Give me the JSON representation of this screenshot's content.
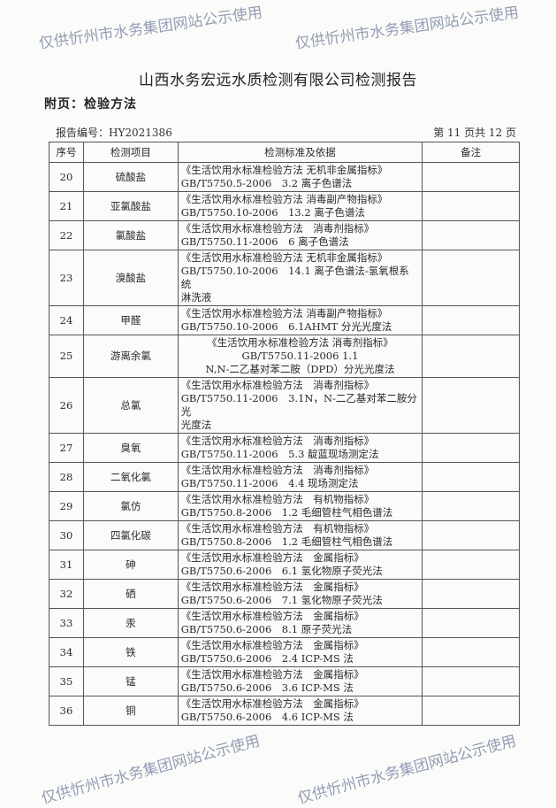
{
  "header": {
    "title": "山西水务宏远水质检测有限公司检测报告",
    "appendix": "附页：检验方法",
    "report_no": "报告编号：HY2021386",
    "page_no": "第 11 页共 12 页"
  },
  "table": {
    "columns": [
      "序号",
      "检测项目",
      "检测标准及依据",
      "备注"
    ],
    "rows": [
      {
        "no": "20",
        "item": "硫酸盐",
        "std": [
          "《生活饮用水标准检验方法 无机非金属指标》",
          "GB/T5750.5-2006　3.2 离子色谱法"
        ],
        "note": ""
      },
      {
        "no": "21",
        "item": "亚氯酸盐",
        "std": [
          "《生活饮用水标准检验方法 消毒副产物指标》",
          "GB/T5750.10-2006　13.2 离子色谱法"
        ],
        "note": ""
      },
      {
        "no": "22",
        "item": "氯酸盐",
        "std": [
          "《生活饮用水标准检验方法　消毒剂指标》",
          "GB/T5750.11-2006　6 离子色谱法"
        ],
        "note": ""
      },
      {
        "no": "23",
        "item": "溴酸盐",
        "std": [
          "《生活饮用水标准检验方法 无机非金属指标》",
          "GB/T5750.10-2006　14.1 离子色谱法-氢氧根系统",
          "淋洗液"
        ],
        "note": ""
      },
      {
        "no": "24",
        "item": "甲醛",
        "std": [
          "《生活饮用水标准检验方法 消毒副产物指标》",
          "GB/T5750.10-2006　6.1AHMT 分光光度法"
        ],
        "note": ""
      },
      {
        "no": "25",
        "item": "游离余氯",
        "std": [
          "《生活饮用水标准检验方法 消毒剂指标》",
          "GB/T5750.11-2006 1.1",
          "N,N-二乙基对苯二胺（DPD）分光光度法"
        ],
        "note": "",
        "center": true
      },
      {
        "no": "26",
        "item": "总氯",
        "std": [
          "《生活饮用水标准检验方法　消毒剂指标》",
          "GB/T5750.11-2006　3.1N，N-二乙基对苯二胺分光",
          "光度法"
        ],
        "note": ""
      },
      {
        "no": "27",
        "item": "臭氧",
        "std": [
          "《生活饮用水标准检验方法　消毒剂指标》",
          "GB/T5750.11-2006　5.3 靛蓝现场测定法"
        ],
        "note": ""
      },
      {
        "no": "28",
        "item": "二氧化氯",
        "std": [
          "《生活饮用水标准检验方法　消毒剂指标》",
          "GB/T5750.11-2006　4.4 现场测定法"
        ],
        "note": ""
      },
      {
        "no": "29",
        "item": "氯仿",
        "std": [
          "《生活饮用水标准检验方法　有机物指标》",
          "GB/T5750.8-2006　1.2 毛细管柱气相色谱法"
        ],
        "note": ""
      },
      {
        "no": "30",
        "item": "四氯化碳",
        "std": [
          "《生活饮用水标准检验方法　有机物指标》",
          "GB/T5750.8-2006　1.2 毛细管柱气相色谱法"
        ],
        "note": ""
      },
      {
        "no": "31",
        "item": "砷",
        "std": [
          "《生活饮用水标准检验方法　金属指标》",
          "GB/T5750.6-2006　6.1 氢化物原子荧光法"
        ],
        "note": ""
      },
      {
        "no": "32",
        "item": "硒",
        "std": [
          "《生活饮用水标准检验方法　金属指标》",
          "GB/T5750.6-2006　7.1 氢化物原子荧光法"
        ],
        "note": ""
      },
      {
        "no": "33",
        "item": "汞",
        "std": [
          "《生活饮用水标准检验方法　金属指标》",
          "GB/T5750.6-2006　8.1 原子荧光法"
        ],
        "note": ""
      },
      {
        "no": "34",
        "item": "铁",
        "std": [
          "《生活饮用水标准检验方法　金属指标》",
          "GB/T5750.6-2006　2.4 ICP-MS 法"
        ],
        "note": ""
      },
      {
        "no": "35",
        "item": "锰",
        "std": [
          "《生活饮用水标准检验方法　金属指标》",
          "GB/T5750.6-2006　3.6 ICP-MS 法"
        ],
        "note": ""
      },
      {
        "no": "36",
        "item": "铜",
        "std": [
          "《生活饮用水标准检验方法　金属指标》",
          "GB/T5750.6-2006　4.6 ICP-MS 法"
        ],
        "note": ""
      }
    ]
  },
  "watermark": "仅供忻州市水务集团网站公示使用"
}
